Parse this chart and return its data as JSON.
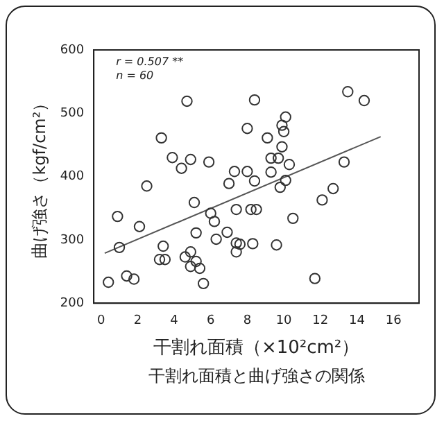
{
  "chart_data": {
    "type": "scatter",
    "xlabel": "干割れ面積（×10²cm²）",
    "ylabel": "曲げ強さ（kgf/cm²）",
    "annotations": [
      "r = 0.507 **",
      "n = 60",
      "干割れ面積と曲げ強さの関係"
    ],
    "xlim": [
      -0.4,
      17.4
    ],
    "xticks": [
      0,
      2,
      4,
      6,
      8,
      10,
      12,
      14,
      16
    ],
    "ylim": [
      200,
      600
    ],
    "yticks": [
      200,
      300,
      400,
      500,
      600
    ],
    "grid": false,
    "series": [
      {
        "type": "scatter",
        "marker": "circle",
        "color": "#333333",
        "x": [
          0.4,
          1.0,
          0.9,
          1.4,
          1.8,
          2.1,
          2.5,
          3.2,
          3.5,
          3.4,
          3.3,
          3.9,
          4.4,
          4.7,
          4.9,
          4.6,
          4.9,
          4.9,
          5.2,
          5.4,
          5.6,
          5.1,
          5.2,
          5.9,
          6.0,
          6.2,
          6.3,
          6.9,
          7.0,
          7.3,
          7.4,
          7.4,
          7.4,
          7.6,
          8.0,
          8.0,
          8.2,
          8.3,
          8.5,
          8.4,
          8.4,
          9.1,
          9.3,
          9.3,
          9.6,
          9.7,
          9.8,
          9.9,
          9.9,
          10.1,
          10.0,
          10.1,
          10.3,
          10.5,
          11.7,
          12.1,
          12.7,
          13.3,
          13.5,
          14.4
        ],
        "values": [
          233,
          288,
          337,
          243,
          238,
          321,
          385,
          269,
          269,
          290,
          461,
          430,
          413,
          519,
          427,
          273,
          281,
          258,
          266,
          255,
          231,
          359,
          311,
          423,
          342,
          329,
          301,
          312,
          389,
          408,
          348,
          295,
          281,
          293,
          476,
          408,
          348,
          294,
          348,
          393,
          521,
          461,
          429,
          407,
          292,
          429,
          383,
          447,
          481,
          494,
          471,
          394,
          419,
          334,
          239,
          363,
          381,
          423,
          534,
          520
        ]
      },
      {
        "type": "line",
        "color": "#555555",
        "x": [
          0.2,
          15.3
        ],
        "values": [
          279,
          463
        ]
      }
    ]
  }
}
